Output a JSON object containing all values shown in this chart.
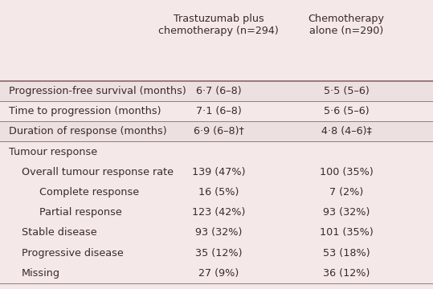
{
  "background_color": "#f5e8e8",
  "row_alt_color": "#ede0e0",
  "header_col1": "Trastuzumab plus\nchemotherapy (n=294)",
  "header_col2": "Chemotherapy\nalone (n=290)",
  "rows": [
    {
      "label": "Progression-free survival (months)",
      "col1": "6·7 (6–8)",
      "col2": "5·5 (5–6)",
      "indent": 0,
      "shaded": true,
      "section_header": false
    },
    {
      "label": "Time to progression (months)",
      "col1": "7·1 (6–8)",
      "col2": "5·6 (5–6)",
      "indent": 0,
      "shaded": false,
      "section_header": false
    },
    {
      "label": "Duration of response (months)",
      "col1": "6·9 (6–8)†",
      "col2": "4·8 (4–6)‡",
      "indent": 0,
      "shaded": true,
      "section_header": false
    },
    {
      "label": "Tumour response",
      "col1": "",
      "col2": "",
      "indent": 0,
      "shaded": false,
      "section_header": true
    },
    {
      "label": "Overall tumour response rate",
      "col1": "139 (47%)",
      "col2": "100 (35%)",
      "indent": 1,
      "shaded": false,
      "section_header": false
    },
    {
      "label": "Complete response",
      "col1": "16 (5%)",
      "col2": "7 (2%)",
      "indent": 2,
      "shaded": false,
      "section_header": false
    },
    {
      "label": "Partial response",
      "col1": "123 (42%)",
      "col2": "93 (32%)",
      "indent": 2,
      "shaded": false,
      "section_header": false
    },
    {
      "label": "Stable disease",
      "col1": "93 (32%)",
      "col2": "101 (35%)",
      "indent": 1,
      "shaded": false,
      "section_header": false
    },
    {
      "label": "Progressive disease",
      "col1": "35 (12%)",
      "col2": "53 (18%)",
      "indent": 1,
      "shaded": false,
      "section_header": false
    },
    {
      "label": "Missing",
      "col1": "27 (9%)",
      "col2": "36 (12%)",
      "indent": 1,
      "shaded": false,
      "section_header": false
    }
  ],
  "text_color": "#3a2a2a",
  "line_color": "#9a7a7a",
  "font_size": 9.2,
  "header_font_size": 9.2
}
